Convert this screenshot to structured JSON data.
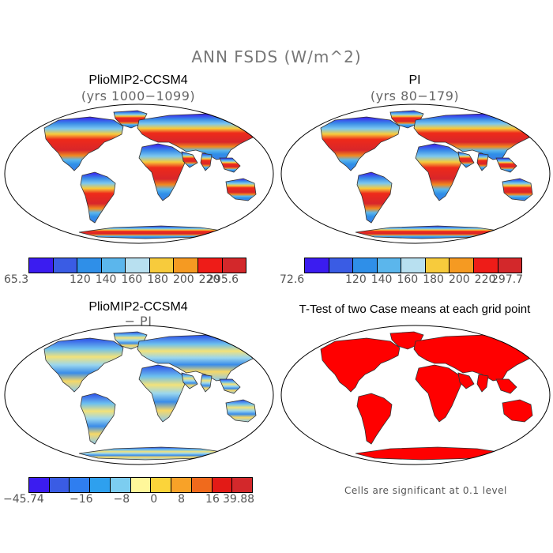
{
  "figure_title": "ANN FSDS (W/m^2)",
  "panels": [
    {
      "title": "PlioMIP2-CCSM4",
      "subtitle": "(yrs 1000−1099)",
      "colorbar": {
        "min_label": "65.3",
        "max_label": "295.6",
        "tick_labels": [
          "120",
          "140",
          "160",
          "180",
          "200",
          "220"
        ],
        "colors": [
          "#3b1cf0",
          "#3a5ce4",
          "#2f8fe8",
          "#5bb6ec",
          "#b8e0f0",
          "#f7cb3c",
          "#f59a22",
          "#ee1c18",
          "#d3282b"
        ]
      }
    },
    {
      "title": "PI",
      "subtitle": "(yrs 80−179)",
      "colorbar": {
        "min_label": "72.6",
        "max_label": "297.7",
        "tick_labels": [
          "120",
          "140",
          "160",
          "180",
          "200",
          "220"
        ],
        "colors": [
          "#3b1cf0",
          "#3a5ce4",
          "#2f8fe8",
          "#5bb6ec",
          "#b8e0f0",
          "#f7cb3c",
          "#f59a22",
          "#ee1c18",
          "#d3282b"
        ]
      }
    },
    {
      "title": "PlioMIP2-CCSM4",
      "subtitle": "− PI",
      "colorbar": {
        "min_label": "−45.74",
        "max_label": "39.88",
        "tick_labels": [
          "−16",
          "−8",
          "0",
          "8",
          "16"
        ],
        "colors": [
          "#3b1cf0",
          "#3a5ce4",
          "#2f7ef0",
          "#2ea0ee",
          "#7ccdf0",
          "#fff79a",
          "#fbd43a",
          "#f8a228",
          "#f06a1c",
          "#e31a16",
          "#d3282b"
        ]
      }
    },
    {
      "title": "T-Test of two Case means at each grid point",
      "note": "Cells are significant at 0.1 level",
      "sig_color": "#ff0000"
    }
  ]
}
